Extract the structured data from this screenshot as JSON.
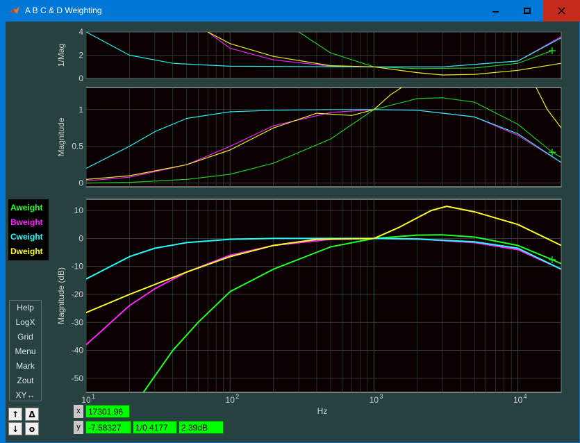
{
  "window": {
    "title": "A B C & D Weighting",
    "accent_color": "#0078d7",
    "close_color": "#c42b1c",
    "background": "#26413f"
  },
  "legend": [
    {
      "label": "Aweight",
      "color": "#22ff22"
    },
    {
      "label": "Bweight",
      "color": "#ff22ff"
    },
    {
      "label": "Cweight",
      "color": "#22ffff"
    },
    {
      "label": "Dweight",
      "color": "#ffff22"
    }
  ],
  "menu": [
    "Help",
    "LogX",
    "Grid",
    "Menu",
    "Mark",
    "Zout",
    "XY↔"
  ],
  "side_buttons": {
    "up": "↑",
    "delta": "Δ",
    "down": "↓",
    "zero": "o"
  },
  "readout": {
    "x_label": "x",
    "y_label": "y",
    "x_value": "17301.96",
    "y_value": "-7.58327",
    "y_ratio": "1/0.4177",
    "y_db": "2.39dB"
  },
  "chart_data": [
    {
      "type": "line",
      "ylabel": "1/Mag",
      "x_scale": "log",
      "xlim": [
        10,
        20000
      ],
      "ylim": [
        0,
        4
      ],
      "yticks": [
        "0",
        "2",
        "4"
      ],
      "grid": true,
      "series": [
        {
          "name": "Aweight",
          "color": "#22cc22",
          "x": [
            300,
            500,
            1000,
            2000,
            5000,
            10000,
            17302
          ],
          "values": [
            4.0,
            2.2,
            1.0,
            0.85,
            0.9,
            1.3,
            2.39
          ]
        },
        {
          "name": "Bweight",
          "color": "#ee22ee",
          "x": [
            70,
            100,
            200,
            500,
            1000,
            3000,
            10000,
            20000
          ],
          "values": [
            4.0,
            2.6,
            1.6,
            1.05,
            1.0,
            1.0,
            1.5,
            3.6
          ]
        },
        {
          "name": "Cweight",
          "color": "#22eeee",
          "x": [
            10,
            20,
            40,
            100,
            1000,
            3000,
            10000,
            20000
          ],
          "values": [
            4.0,
            2.0,
            1.3,
            1.05,
            1.0,
            1.0,
            1.5,
            3.5
          ]
        },
        {
          "name": "Dweight",
          "color": "#eeee22",
          "x": [
            70,
            100,
            200,
            500,
            1000,
            2000,
            3000,
            5000,
            10000,
            20000
          ],
          "values": [
            4.0,
            3.0,
            1.9,
            1.1,
            1.0,
            0.5,
            0.3,
            0.35,
            0.7,
            1.3
          ]
        }
      ]
    },
    {
      "type": "line",
      "ylabel": "Magnitude",
      "x_scale": "log",
      "xlim": [
        10,
        20000
      ],
      "ylim": [
        -0.05,
        1.3
      ],
      "yticks": [
        "0",
        "0.5",
        "1"
      ],
      "grid": true,
      "series": [
        {
          "name": "Aweight",
          "color": "#22cc22",
          "x": [
            10,
            20,
            50,
            100,
            200,
            500,
            1000,
            2000,
            3000,
            5000,
            10000,
            17302,
            20000
          ],
          "values": [
            0.0,
            0.01,
            0.05,
            0.12,
            0.27,
            0.6,
            1.0,
            1.15,
            1.16,
            1.1,
            0.8,
            0.42,
            0.35
          ]
        },
        {
          "name": "Bweight",
          "color": "#ee22ee",
          "x": [
            10,
            20,
            50,
            100,
            200,
            500,
            1000,
            2000,
            5000,
            10000,
            20000
          ],
          "values": [
            0.03,
            0.08,
            0.25,
            0.5,
            0.78,
            0.96,
            1.0,
            0.99,
            0.9,
            0.65,
            0.28
          ]
        },
        {
          "name": "Cweight",
          "color": "#22eeee",
          "x": [
            10,
            20,
            30,
            50,
            100,
            200,
            500,
            1000,
            2000,
            5000,
            10000,
            20000
          ],
          "values": [
            0.2,
            0.5,
            0.7,
            0.88,
            0.97,
            0.99,
            1.0,
            1.0,
            0.99,
            0.9,
            0.67,
            0.28
          ]
        },
        {
          "name": "Dweight",
          "color": "#eeee22",
          "x": [
            10,
            20,
            50,
            100,
            200,
            400,
            700,
            1000,
            1300,
            1700,
            13000,
            16000,
            20000
          ],
          "values": [
            0.05,
            0.1,
            0.25,
            0.45,
            0.75,
            0.95,
            0.92,
            1.0,
            1.2,
            1.35,
            1.35,
            1.0,
            0.75
          ]
        }
      ]
    },
    {
      "type": "line",
      "ylabel": "Magnitude (dB)",
      "xlabel": "Hz",
      "x_scale": "log",
      "xlim": [
        10,
        20000
      ],
      "ylim": [
        -55,
        14
      ],
      "yticks": [
        "10",
        "0",
        "-10",
        "-20",
        "-30",
        "-40",
        "-50"
      ],
      "xticks": [
        "10",
        "100",
        "1000",
        "10000"
      ],
      "grid": true,
      "series": [
        {
          "name": "Aweight",
          "color": "#22ff22",
          "x": [
            25,
            40,
            60,
            100,
            200,
            500,
            1000,
            2000,
            3000,
            5000,
            10000,
            17302,
            20000
          ],
          "values": [
            -55,
            -40,
            -30,
            -19,
            -11,
            -3,
            0,
            1.2,
            1.3,
            0.5,
            -2.5,
            -7.6,
            -9
          ]
        },
        {
          "name": "Bweight",
          "color": "#ff22ff",
          "x": [
            10,
            20,
            30,
            50,
            100,
            200,
            500,
            1000,
            2000,
            5000,
            10000,
            20000
          ],
          "values": [
            -38,
            -24,
            -18,
            -12,
            -6,
            -2.5,
            -0.3,
            0,
            -0.2,
            -1.5,
            -4,
            -11
          ]
        },
        {
          "name": "Cweight",
          "color": "#22ffff",
          "x": [
            10,
            20,
            30,
            50,
            100,
            200,
            500,
            1000,
            2000,
            5000,
            10000,
            20000
          ],
          "values": [
            -14.5,
            -6.5,
            -3.5,
            -1.5,
            -0.3,
            0,
            0,
            0,
            -0.2,
            -1.2,
            -3.5,
            -11
          ]
        },
        {
          "name": "Dweight",
          "color": "#ffff22",
          "x": [
            10,
            20,
            50,
            100,
            200,
            400,
            1000,
            1500,
            2500,
            3200,
            5000,
            10000,
            20000
          ],
          "values": [
            -26.5,
            -20,
            -12,
            -6.5,
            -2.5,
            -0.3,
            0,
            4,
            10,
            11.5,
            9.5,
            5,
            -2.5
          ]
        }
      ]
    }
  ]
}
